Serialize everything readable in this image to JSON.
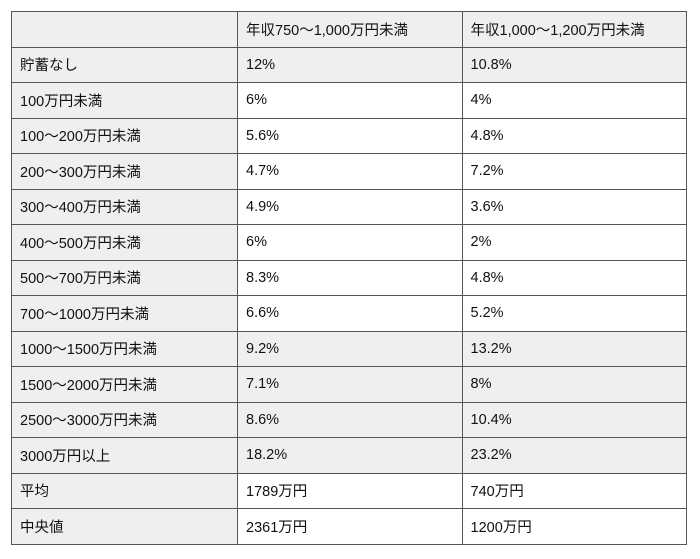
{
  "header": [
    "",
    "年収750〜1,000万円未満",
    "年収1,000〜1,200万円未満"
  ],
  "highlight_color": "#efefef",
  "rows": [
    {
      "label": "貯蓄なし",
      "a": "12%",
      "b": "10.8%",
      "highlight": true
    },
    {
      "label": "100万円未満",
      "a": "6%",
      "b": "4%",
      "highlight": false
    },
    {
      "label": "100〜200万円未満",
      "a": "5.6%",
      "b": "4.8%",
      "highlight": false
    },
    {
      "label": "200〜300万円未満",
      "a": "4.7%",
      "b": "7.2%",
      "highlight": false
    },
    {
      "label": "300〜400万円未満",
      "a": "4.9%",
      "b": "3.6%",
      "highlight": false
    },
    {
      "label": "400〜500万円未満",
      "a": "6%",
      "b": "2%",
      "highlight": false
    },
    {
      "label": "500〜700万円未満",
      "a": "8.3%",
      "b": "4.8%",
      "highlight": false
    },
    {
      "label": "700〜1000万円未満",
      "a": "6.6%",
      "b": "5.2%",
      "highlight": false
    },
    {
      "label": "1000〜1500万円未満",
      "a": "9.2%",
      "b": "13.2%",
      "highlight": true
    },
    {
      "label": "1500〜2000万円未満",
      "a": "7.1%",
      "b": "8%",
      "highlight": true
    },
    {
      "label": "2500〜3000万円未満",
      "a": "8.6%",
      "b": "10.4%",
      "highlight": true
    },
    {
      "label": "3000万円以上",
      "a": "18.2%",
      "b": "23.2%",
      "highlight": true
    },
    {
      "label": "平均",
      "a": "1789万円",
      "b": "740万円",
      "highlight": false
    },
    {
      "label": "中央値",
      "a": "2361万円",
      "b": "1200万円",
      "highlight": false
    }
  ]
}
